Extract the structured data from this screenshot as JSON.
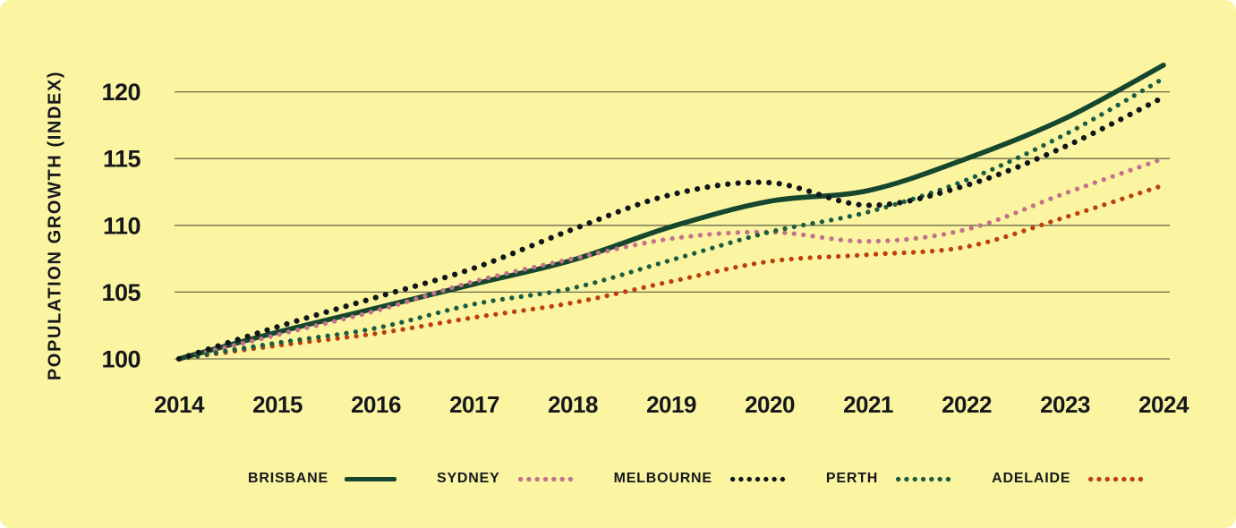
{
  "page": {
    "background": "#FBF5A2"
  },
  "colors": {
    "grid": "#6E6C4B",
    "text": "#16171B"
  },
  "chart_data": {
    "type": "line",
    "title": "",
    "xlabel": "",
    "ylabel": "POPULATION GROWTH (INDEX)",
    "x": [
      "2014",
      "2015",
      "2016",
      "2017",
      "2018",
      "2019",
      "2020",
      "2021",
      "2022",
      "2023",
      "2024"
    ],
    "yticks": [
      "100",
      "105",
      "110",
      "115",
      "120"
    ],
    "ylim": [
      98.5,
      123
    ],
    "grid": true,
    "legend_position": "bottom",
    "series": [
      {
        "name": "BRISBANE",
        "style": "solid",
        "color": "#15462E",
        "values": [
          100,
          102.0,
          103.8,
          105.6,
          107.4,
          109.9,
          111.8,
          112.6,
          115.0,
          118.0,
          122.0
        ]
      },
      {
        "name": "SYDNEY",
        "style": "dotted",
        "color": "#C4718C",
        "values": [
          100,
          101.8,
          103.6,
          105.8,
          107.5,
          109.0,
          109.5,
          108.8,
          109.7,
          112.4,
          115.0
        ]
      },
      {
        "name": "MELBOURNE",
        "style": "dotted",
        "color": "#10161B",
        "values": [
          100,
          102.4,
          104.6,
          106.8,
          109.7,
          112.3,
          113.2,
          111.5,
          113.0,
          115.9,
          119.6
        ]
      },
      {
        "name": "PERTH",
        "style": "dotted",
        "color": "#1A5C41",
        "values": [
          100,
          101.2,
          102.3,
          104.1,
          105.3,
          107.4,
          109.5,
          111.0,
          113.4,
          116.8,
          121.0
        ]
      },
      {
        "name": "ADELAIDE",
        "style": "dotted",
        "color": "#BC400D",
        "values": [
          100,
          101.0,
          101.9,
          103.1,
          104.2,
          105.8,
          107.3,
          107.8,
          108.4,
          110.6,
          113.0
        ]
      }
    ]
  }
}
